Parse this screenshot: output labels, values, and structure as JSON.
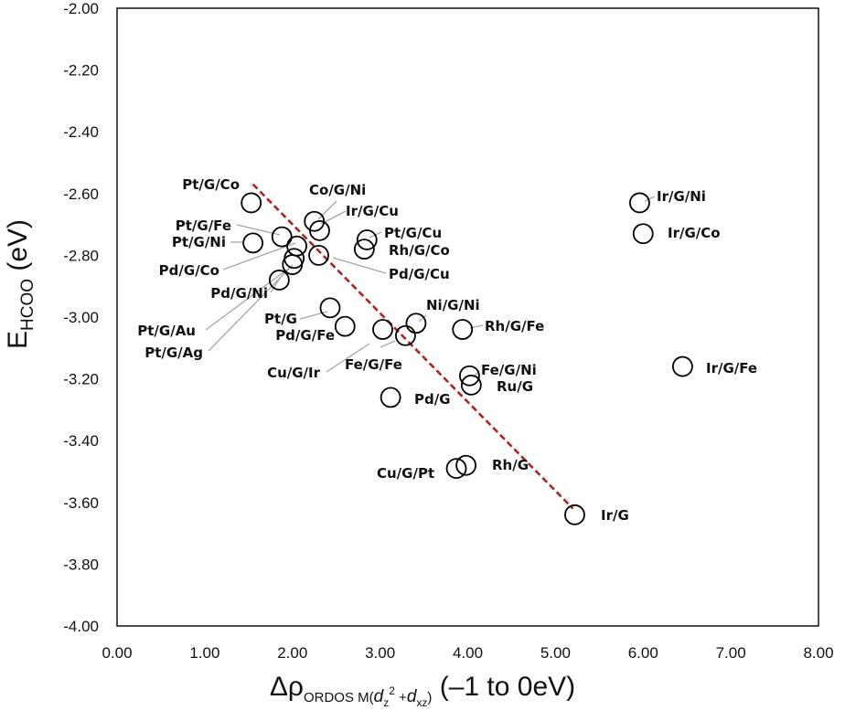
{
  "chart_data": {
    "type": "scatter",
    "xlabel": "Δρ",
    "xlabel_sub": "ORDOS M(",
    "xlabel_sub_parts": [
      "d",
      "z",
      "2",
      " +",
      "d",
      "xz",
      ")"
    ],
    "xlabel_tail": " (–1 to 0eV)",
    "ylabel_main": "E",
    "ylabel_sub": "HCOO",
    "ylabel_tail": " (eV)",
    "xlim": [
      0,
      8
    ],
    "ylim": [
      -4.0,
      -2.0
    ],
    "xticks": [
      "0.00",
      "1.00",
      "2.00",
      "3.00",
      "4.00",
      "5.00",
      "6.00",
      "7.00",
      "8.00"
    ],
    "yticks": [
      "-2.00",
      "-2.20",
      "-2.40",
      "-2.60",
      "-2.80",
      "-3.00",
      "-3.20",
      "-3.40",
      "-3.60",
      "-3.80",
      "-4.00"
    ],
    "grid": false,
    "marker": "open-circle",
    "trendline": {
      "x": [
        1.55,
        5.2
      ],
      "y": [
        -2.57,
        -3.62
      ],
      "color": "#b22222",
      "style": "dashed"
    },
    "points": [
      {
        "label": "Pt/G/Co",
        "x": 1.53,
        "y": -2.63
      },
      {
        "label": "Pt/G/Fe",
        "x": 1.88,
        "y": -2.74
      },
      {
        "label": "Pt/G/Ni",
        "x": 1.55,
        "y": -2.76
      },
      {
        "label": "Pd/G/Co",
        "x": 2.05,
        "y": -2.77
      },
      {
        "label": "Pd/G/Ni",
        "x": 1.85,
        "y": -2.88
      },
      {
        "label": "Pt/G/Au",
        "x": 2.02,
        "y": -2.81
      },
      {
        "label": "Pt/G/Ag",
        "x": 2.0,
        "y": -2.83
      },
      {
        "label": "Co/G/Ni",
        "x": 2.25,
        "y": -2.69
      },
      {
        "label": "Ir/G/Cu",
        "x": 2.31,
        "y": -2.72
      },
      {
        "label": "Pd/G/Cu",
        "x": 2.3,
        "y": -2.8
      },
      {
        "label": "Pt/G/Cu",
        "x": 2.85,
        "y": -2.75
      },
      {
        "label": "Rh/G/Co",
        "x": 2.82,
        "y": -2.78
      },
      {
        "label": "Pt/G",
        "x": 2.43,
        "y": -2.97
      },
      {
        "label": "Pd/G/Fe",
        "x": 2.6,
        "y": -3.03
      },
      {
        "label": "Cu/G/Ir",
        "x": 3.03,
        "y": -3.04
      },
      {
        "label": "Fe/G/Fe",
        "x": 3.29,
        "y": -3.06
      },
      {
        "label": "Ni/G/Ni",
        "x": 3.41,
        "y": -3.02
      },
      {
        "label": "Rh/G/Fe",
        "x": 3.94,
        "y": -3.04
      },
      {
        "label": "Fe/G/Ni",
        "x": 4.02,
        "y": -3.19
      },
      {
        "label": "Ru/G",
        "x": 4.04,
        "y": -3.22
      },
      {
        "label": "Pd/G",
        "x": 3.12,
        "y": -3.26
      },
      {
        "label": "Cu/G/Pt",
        "x": 3.87,
        "y": -3.49
      },
      {
        "label": "Rh/G",
        "x": 3.98,
        "y": -3.48
      },
      {
        "label": "Ir/G",
        "x": 5.22,
        "y": -3.64
      },
      {
        "label": "Ir/G/Ni",
        "x": 5.96,
        "y": -2.63
      },
      {
        "label": "Ir/G/Co",
        "x": 6.0,
        "y": -2.73
      },
      {
        "label": "Ir/G/Fe",
        "x": 6.45,
        "y": -3.16
      }
    ]
  }
}
